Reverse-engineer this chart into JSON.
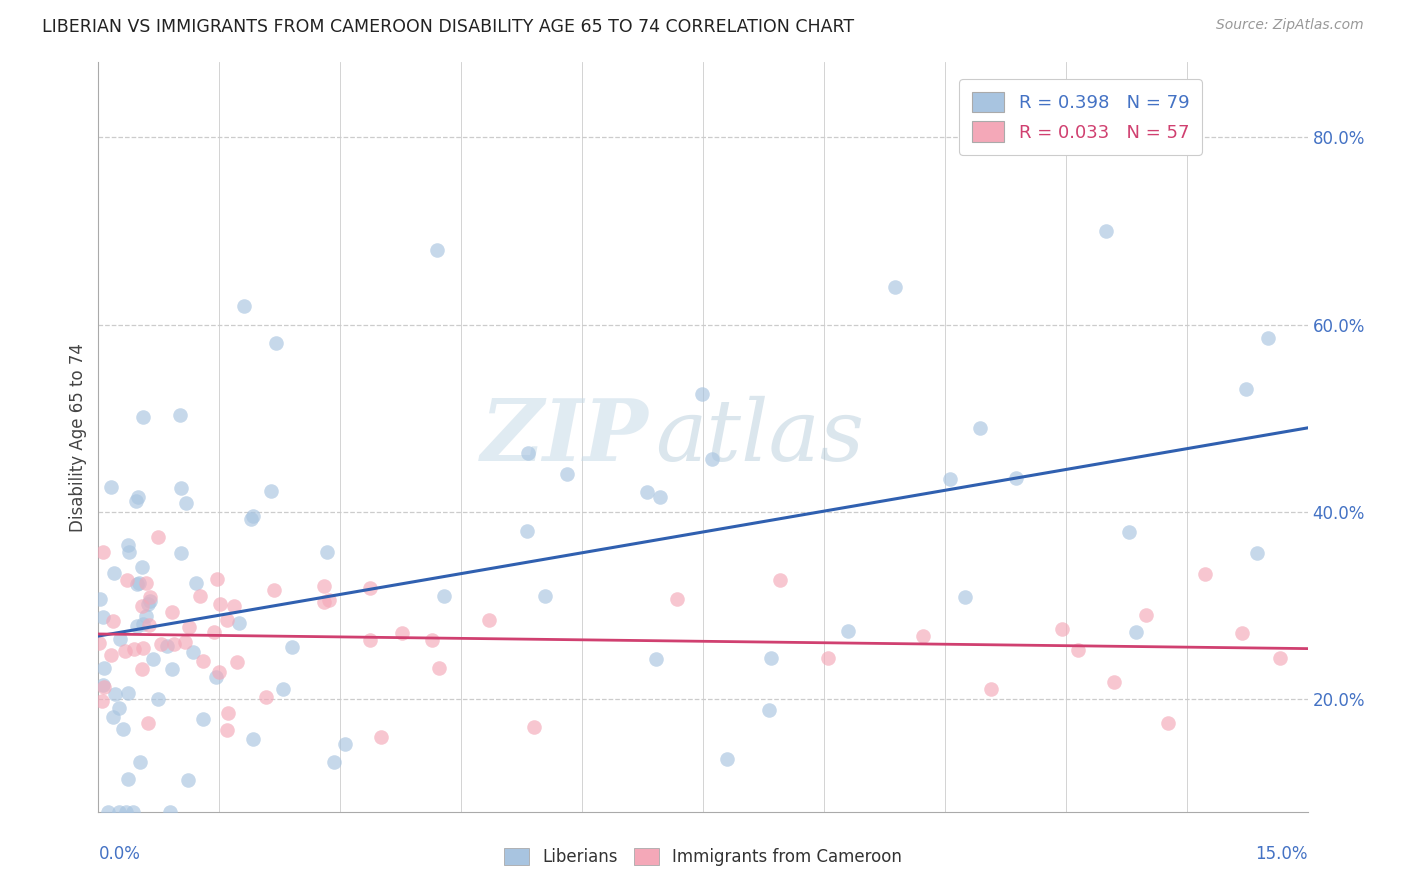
{
  "title": "LIBERIAN VS IMMIGRANTS FROM CAMEROON DISABILITY AGE 65 TO 74 CORRELATION CHART",
  "source": "Source: ZipAtlas.com",
  "ylabel": "Disability Age 65 to 74",
  "xmin": 0.0,
  "xmax": 15.0,
  "ymin": 8.0,
  "ymax": 88.0,
  "ytick_vals": [
    20.0,
    40.0,
    60.0,
    80.0
  ],
  "ytick_labels": [
    "20.0%",
    "40.0%",
    "60.0%",
    "80.0%"
  ],
  "liberian_color": "#a8c4e0",
  "cameroon_color": "#f4a8b8",
  "line_blue": "#3060b0",
  "line_pink": "#d04070",
  "liberian_R": 0.398,
  "liberian_N": 79,
  "cameroon_R": 0.033,
  "cameroon_N": 57,
  "legend_label_1": "Liberians",
  "legend_label_2": "Immigrants from Cameroon",
  "watermark_part1": "ZIP",
  "watermark_part2": "atlas",
  "grid_color": "#cccccc",
  "tick_color": "#4472c4"
}
